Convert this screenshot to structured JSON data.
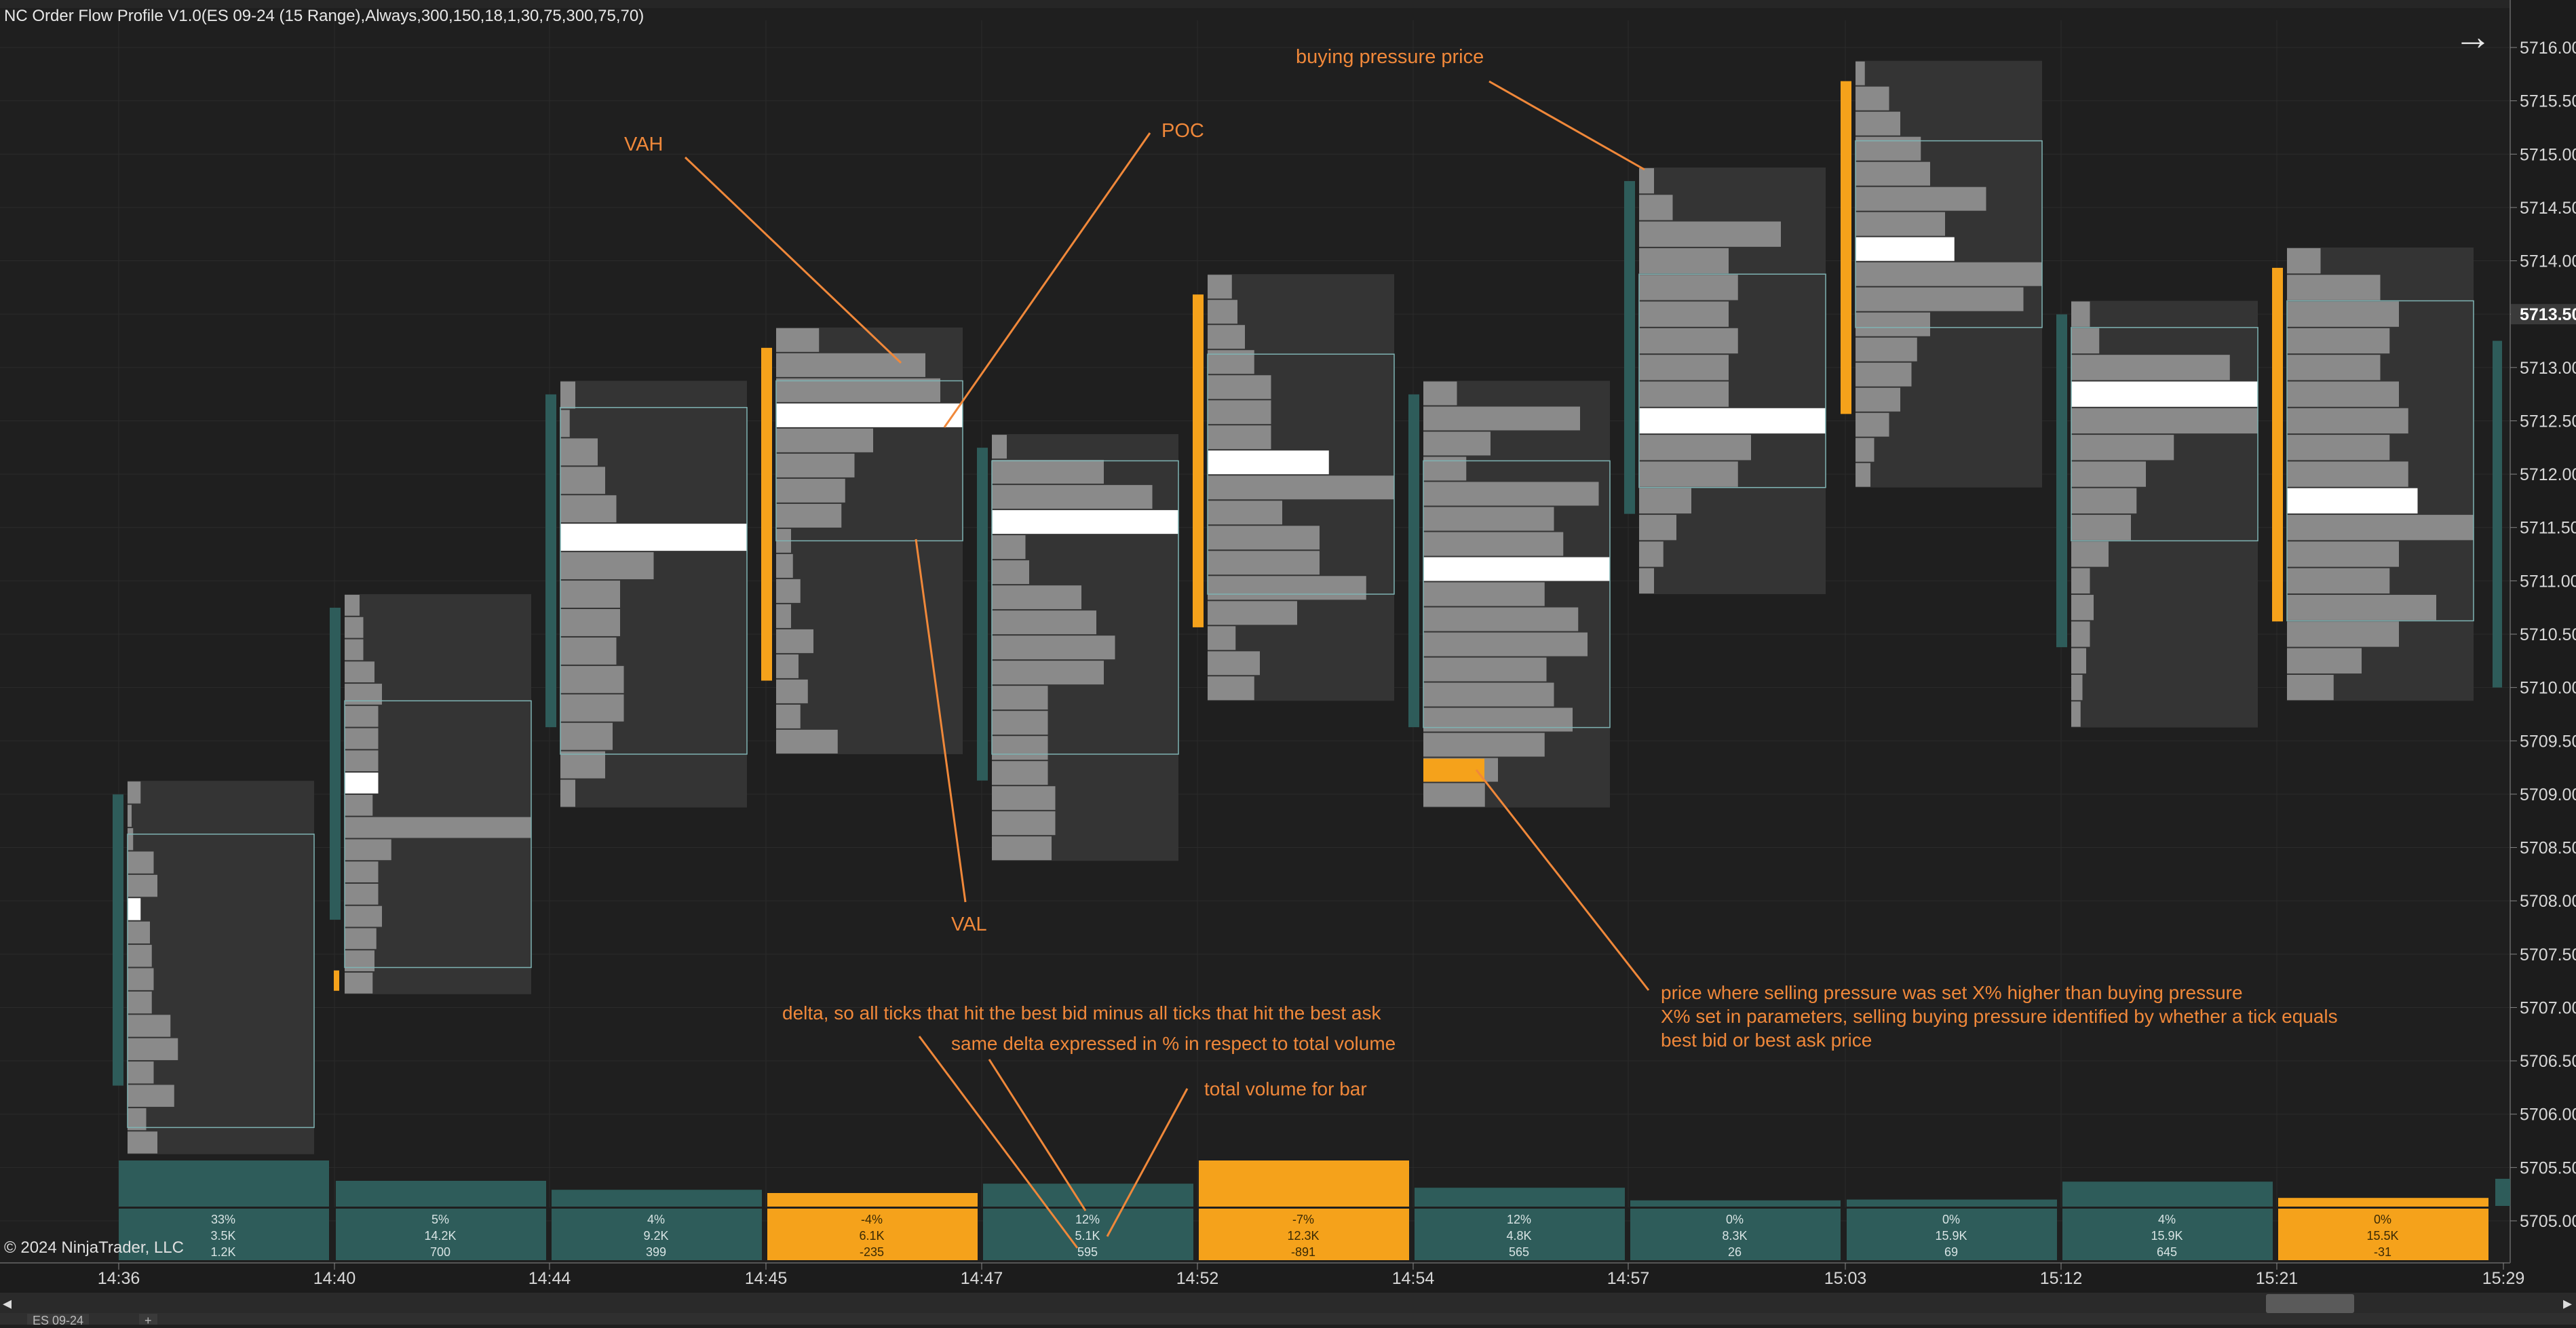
{
  "header": {
    "title": "NC Order Flow Profile V1.0(ES 09-24 (15 Range),Always,300,150,18,1,30,75,300,75,70)",
    "copyright": "© 2024 NinjaTrader, LLC",
    "nav_arrow": "→"
  },
  "tabs": [
    {
      "label": "ES 09-24"
    },
    {
      "label": "+"
    }
  ],
  "colors": {
    "background": "#1f1f1f",
    "profile_bg": "#343434",
    "volume_bar": "#8a8a8a",
    "poc": "#ffffff",
    "value_area_border": "#7fb3b3",
    "bearish_teal": "#2e5c5a",
    "bullish_orange": "#f5a21b",
    "annotation": "#f0883a",
    "grid": "#2b2b2b"
  },
  "chart_data": {
    "type": "footprint-profile",
    "title": "NC Order Flow Profile V1.0",
    "instrument": "ES 09-24 (15 Range)",
    "tick_size": 0.25,
    "ylim": [
      5704.75,
      5716.25
    ],
    "y_ticks": [
      "5716.00",
      "5715.50",
      "5715.00",
      "5714.50",
      "5714.00",
      "5713.50",
      "5713.00",
      "5712.50",
      "5712.00",
      "5711.50",
      "5711.00",
      "5710.50",
      "5710.00",
      "5709.50",
      "5709.00",
      "5708.50",
      "5708.00",
      "5707.50",
      "5707.00",
      "5706.50",
      "5706.00",
      "5705.50",
      "5705.00"
    ],
    "current_price": "5713.50",
    "x_labels": [
      "14:36",
      "14:40",
      "14:44",
      "14:45",
      "14:47",
      "14:52",
      "14:54",
      "14:57",
      "15:03",
      "15:12",
      "15:21",
      "15:29"
    ],
    "bars": [
      {
        "time": "14:36",
        "low": 5705.75,
        "high": 5709.0,
        "poc": 5707.75,
        "vah": 5708.5,
        "val": 5706.0,
        "side": "teal",
        "marker": "none",
        "profile": [
          7,
          1,
          3,
          14,
          16,
          7,
          12,
          13,
          14,
          13,
          23,
          27,
          14,
          25,
          10,
          16
        ],
        "stat_pct": "33%",
        "stat_vol": "3.5K",
        "stat_delta": "1.2K",
        "stat_color": "teal",
        "vbar": 1.0
      },
      {
        "time": "14:40",
        "low": 5707.25,
        "high": 5710.75,
        "poc": 5708.75,
        "vah": 5709.75,
        "val": 5707.5,
        "side": "teal",
        "marker": "low",
        "profile": [
          8,
          10,
          10,
          16,
          20,
          18,
          18,
          18,
          18,
          15,
          100,
          25,
          18,
          18,
          20,
          17,
          16,
          15
        ],
        "stat_pct": "5%",
        "stat_vol": "14.2K",
        "stat_delta": "700",
        "stat_color": "teal",
        "vbar": 0.5
      },
      {
        "time": "14:44",
        "low": 5709.0,
        "high": 5712.75,
        "poc": 5711.5,
        "vah": 5712.5,
        "val": 5709.5,
        "side": "teal",
        "marker": "none",
        "profile": [
          8,
          5,
          20,
          24,
          30,
          100,
          50,
          32,
          32,
          30,
          34,
          34,
          28,
          24,
          8
        ],
        "stat_pct": "4%",
        "stat_vol": "9.2K",
        "stat_delta": "399",
        "stat_color": "teal",
        "vbar": 0.28
      },
      {
        "time": "14:45",
        "low": 5709.5,
        "high": 5713.25,
        "poc": 5712.5,
        "vah": 5712.75,
        "val": 5711.5,
        "side": "orange",
        "marker": "tall",
        "profile": [
          23,
          80,
          88,
          100,
          52,
          42,
          37,
          35,
          8,
          9,
          13,
          8,
          20,
          12,
          17,
          13,
          33
        ],
        "stat_pct": "-4%",
        "stat_vol": "6.1K",
        "stat_delta": "-235",
        "stat_color": "orange",
        "vbar": 0.2
      },
      {
        "time": "14:47",
        "low": 5708.5,
        "high": 5712.25,
        "poc": 5711.5,
        "vah": 5712.0,
        "val": 5709.5,
        "side": "teal",
        "marker": "none",
        "profile": [
          8,
          60,
          86,
          100,
          18,
          20,
          48,
          56,
          66,
          60,
          30,
          30,
          30,
          30,
          34,
          34,
          32
        ],
        "stat_pct": "12%",
        "stat_vol": "5.1K",
        "stat_delta": "595",
        "stat_color": "teal",
        "vbar": 0.43
      },
      {
        "time": "14:52",
        "low": 5710.0,
        "high": 5713.75,
        "poc": 5712.0,
        "vah": 5713.0,
        "val": 5711.0,
        "side": "orange",
        "marker": "tall",
        "profile": [
          13,
          16,
          20,
          25,
          34,
          34,
          34,
          65,
          100,
          40,
          60,
          60,
          85,
          48,
          15,
          28,
          25
        ],
        "stat_pct": "-7%",
        "stat_vol": "12.3K",
        "stat_delta": "-891",
        "stat_color": "orange",
        "vbar": 1.0
      },
      {
        "time": "14:54",
        "low": 5709.0,
        "high": 5712.75,
        "poc": 5711.0,
        "vah": 5712.0,
        "val": 5709.75,
        "side": "teal",
        "marker": "bottom",
        "profile": [
          18,
          84,
          36,
          23,
          94,
          70,
          75,
          100,
          65,
          83,
          88,
          66,
          70,
          80,
          65,
          40,
          33
        ],
        "stat_pct": "12%",
        "stat_vol": "4.8K",
        "stat_delta": "565",
        "stat_color": "teal",
        "vbar": 0.33
      },
      {
        "time": "14:57",
        "low": 5711.0,
        "high": 5714.75,
        "poc": 5712.5,
        "vah": 5713.75,
        "val": 5712.0,
        "side": "teal",
        "marker": "none",
        "profile": [
          8,
          18,
          76,
          48,
          53,
          48,
          53,
          48,
          48,
          100,
          60,
          53,
          28,
          20,
          13,
          8
        ],
        "stat_pct": "0%",
        "stat_vol": "8.3K",
        "stat_delta": "26",
        "stat_color": "teal",
        "vbar": 0.02
      },
      {
        "time": "15:03",
        "low": 5712.0,
        "high": 5715.75,
        "poc": 5714.0,
        "vah": 5715.0,
        "val": 5713.5,
        "side": "orange",
        "marker": "tall",
        "profile": [
          5,
          18,
          24,
          35,
          40,
          70,
          48,
          53,
          100,
          90,
          40,
          33,
          30,
          24,
          18,
          10,
          8
        ],
        "stat_pct": "0%",
        "stat_vol": "15.9K",
        "stat_delta": "69",
        "stat_color": "teal",
        "vbar": 0.04
      },
      {
        "time": "15:12",
        "low": 5709.75,
        "high": 5713.5,
        "poc": 5712.75,
        "vah": 5713.25,
        "val": 5711.5,
        "side": "teal",
        "marker": "none",
        "profile": [
          10,
          15,
          85,
          100,
          100,
          55,
          40,
          35,
          32,
          20,
          10,
          12,
          10,
          8,
          6,
          5
        ],
        "stat_pct": "4%",
        "stat_vol": "15.9K",
        "stat_delta": "645",
        "stat_color": "teal",
        "vbar": 0.48
      },
      {
        "time": "15:21",
        "low": 5710.0,
        "high": 5714.0,
        "poc": 5711.75,
        "vah": 5713.5,
        "val": 5710.75,
        "side": "orange",
        "marker": "tall",
        "profile": [
          18,
          50,
          60,
          55,
          50,
          60,
          65,
          55,
          65,
          70,
          100,
          60,
          55,
          80,
          60,
          40,
          25
        ],
        "stat_pct": "0%",
        "stat_vol": "15.5K",
        "stat_delta": "-31",
        "stat_color": "orange",
        "vbar": 0.08
      }
    ]
  },
  "annotations": [
    {
      "id": "vah",
      "text": "VAH"
    },
    {
      "id": "poc",
      "text": "POC"
    },
    {
      "id": "val",
      "text": "VAL"
    },
    {
      "id": "bp",
      "text": "buying pressure price"
    },
    {
      "id": "sp1",
      "text": "price where selling pressure was set X% higher than buying pressure"
    },
    {
      "id": "sp2",
      "text": "X% set in parameters, selling buying pressure identified by whether a tick equals"
    },
    {
      "id": "sp3",
      "text": "best bid or best ask price"
    },
    {
      "id": "d1",
      "text": "delta, so all ticks that hit the best bid minus all ticks that hit the best ask"
    },
    {
      "id": "d2",
      "text": "same delta expressed in % in respect to total volume"
    },
    {
      "id": "tv",
      "text": "total volume for bar"
    }
  ]
}
